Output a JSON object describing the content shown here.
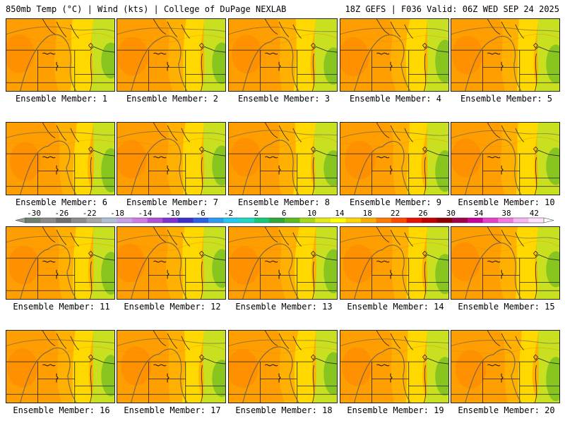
{
  "header": {
    "left": "850mb Temp (°C) | Wind (kts) | College of DuPage NEXLAB",
    "right": "18Z GEFS | F036 Valid: 06Z WED SEP 24 2025"
  },
  "panels": [
    {
      "label": "Ensemble Member: 1"
    },
    {
      "label": "Ensemble Member: 2"
    },
    {
      "label": "Ensemble Member: 3"
    },
    {
      "label": "Ensemble Member: 4"
    },
    {
      "label": "Ensemble Member: 5"
    },
    {
      "label": "Ensemble Member: 6"
    },
    {
      "label": "Ensemble Member: 7"
    },
    {
      "label": "Ensemble Member: 8"
    },
    {
      "label": "Ensemble Member: 9"
    },
    {
      "label": "Ensemble Member: 10"
    },
    {
      "label": "Ensemble Member: 11"
    },
    {
      "label": "Ensemble Member: 12"
    },
    {
      "label": "Ensemble Member: 13"
    },
    {
      "label": "Ensemble Member: 14"
    },
    {
      "label": "Ensemble Member: 15"
    },
    {
      "label": "Ensemble Member: 16"
    },
    {
      "label": "Ensemble Member: 17"
    },
    {
      "label": "Ensemble Member: 18"
    },
    {
      "label": "Ensemble Member: 19"
    },
    {
      "label": "Ensemble Member: 20"
    }
  ],
  "colorbar": {
    "labels": [
      "-30",
      "-26",
      "-22",
      "-18",
      "-14",
      "-10",
      "-6",
      "-2",
      "2",
      "6",
      "10",
      "14",
      "18",
      "22",
      "26",
      "30",
      "34",
      "38",
      "42"
    ],
    "colors": [
      "#6f7f6f",
      "#8a8a8a",
      "#6e6e6e",
      "#8c8c8c",
      "#a6a6a6",
      "#b0bed8",
      "#c8a0e8",
      "#d27ae6",
      "#b14fd6",
      "#7f32d0",
      "#3c32c8",
      "#2e5fe0",
      "#2e9af0",
      "#22c8f0",
      "#20d8c0",
      "#18c878",
      "#2fa838",
      "#5cbc1e",
      "#a8d818",
      "#e2ec14",
      "#ffff00",
      "#ffd400",
      "#ffae00",
      "#ff7a00",
      "#ff4a00",
      "#e81000",
      "#c00000",
      "#8e0000",
      "#a0004a",
      "#c8009c",
      "#e640c8",
      "#f07ae0",
      "#f8b4f0",
      "#ffe0ff"
    ],
    "extend_left": "#8fa38f",
    "extend_right": "#ffffff"
  }
}
